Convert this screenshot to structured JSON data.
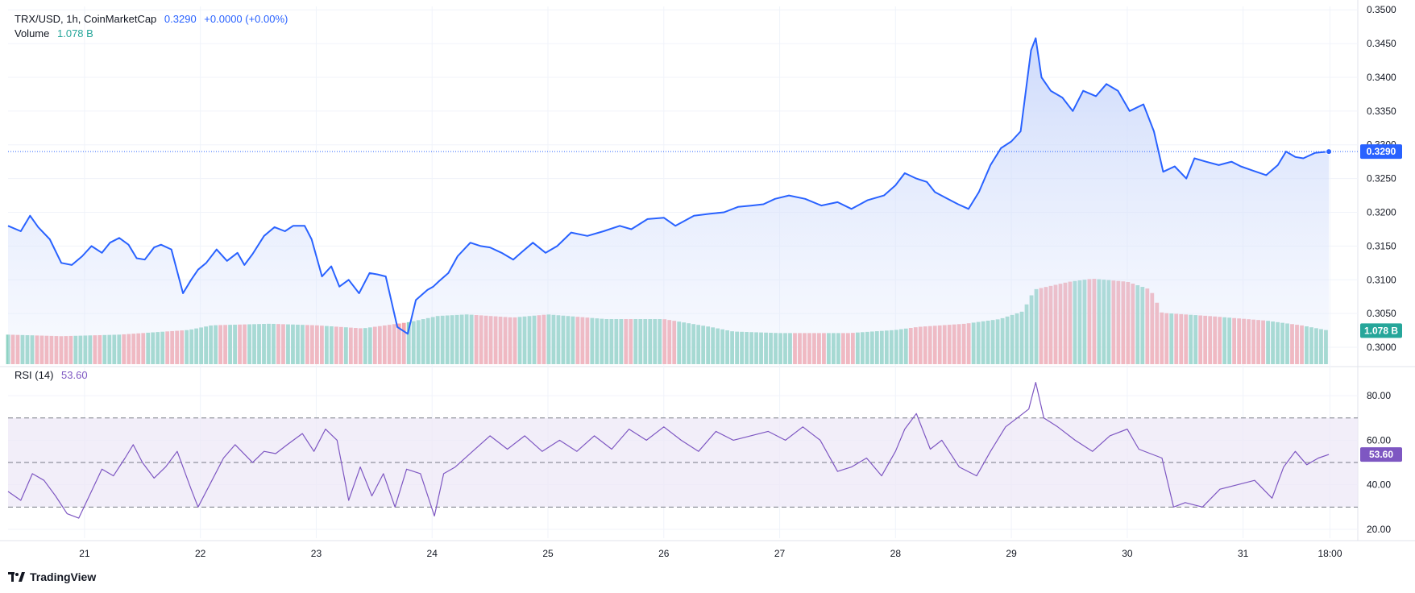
{
  "legend": {
    "symbol": "TRX/USD, 1h, CoinMarketCap",
    "price": "0.3290",
    "change": "+0.0000 (+0.00%)",
    "volume_label": "Volume",
    "volume_value": "1.078 B",
    "rsi_label": "RSI (14)",
    "rsi_value": "53.60"
  },
  "branding": {
    "name": "TradingView"
  },
  "colors": {
    "line": "#2962ff",
    "area_top": "#c5d4fb",
    "up_volume": "#8fd3c3",
    "down_volume": "#f4a7ad",
    "rsi_line": "#7e57c2",
    "rsi_band": "#ede7f6",
    "grid": "#f0f3fa",
    "volume_tag": "#26a69a",
    "rsi_tag": "#7e57c2",
    "price_tag": "#2962ff"
  },
  "chart_data": [
    {
      "type": "area",
      "pane": "price",
      "title": "TRX/USD, 1h, CoinMarketCap",
      "x_ticks": [
        "21",
        "22",
        "23",
        "24",
        "25",
        "26",
        "27",
        "28",
        "29",
        "30",
        "31",
        "18:00"
      ],
      "x_tick_days": [
        21,
        22,
        23,
        24,
        25,
        26,
        27,
        28,
        29,
        30,
        31,
        31.75
      ],
      "y_ticks": [
        "0.3000",
        "0.3050",
        "0.3100",
        "0.3150",
        "0.3200",
        "0.3250",
        "0.3300",
        "0.3350",
        "0.3400",
        "0.3450",
        "0.3500"
      ],
      "ylim": [
        0.2975,
        0.3505
      ],
      "xlim": [
        20.34,
        31.99
      ],
      "grid": true,
      "last_price": 0.329,
      "last_price_label": "0.3290",
      "series": [
        {
          "x": [
            20.34,
            20.45,
            20.53,
            20.6,
            20.7,
            20.8,
            20.89,
            20.98,
            21.06,
            21.15,
            21.22,
            21.3,
            21.38,
            21.45,
            21.52,
            21.6,
            21.66,
            21.75,
            21.85,
            21.92,
            21.98,
            22.05,
            22.14,
            22.23,
            22.32,
            22.38,
            22.45,
            22.55,
            22.64,
            22.73,
            22.8,
            22.9,
            22.96,
            23.05,
            23.13,
            23.2,
            23.28,
            23.37,
            23.46,
            23.53,
            23.6,
            23.7,
            23.79,
            23.86,
            23.96,
            24.01,
            24.06,
            24.14,
            24.22,
            24.33,
            24.42,
            24.5,
            24.6,
            24.7,
            24.78,
            24.87,
            24.98,
            25.08,
            25.2,
            25.34,
            25.48,
            25.62,
            25.72,
            25.86,
            26.0,
            26.1,
            26.26,
            26.4,
            26.52,
            26.64,
            26.76,
            26.86,
            26.96,
            27.08,
            27.22,
            27.36,
            27.5,
            27.62,
            27.76,
            27.9,
            28.0,
            28.08,
            28.18,
            28.27,
            28.34,
            28.45,
            28.54,
            28.63,
            28.72,
            28.82,
            28.91,
            29.0,
            29.08,
            29.17,
            29.21,
            29.26,
            29.34,
            29.44,
            29.53,
            29.62,
            29.73,
            29.82,
            29.92,
            30.02,
            30.14,
            30.23,
            30.31,
            30.41,
            30.51,
            30.58,
            30.68,
            30.79,
            30.9,
            30.98,
            31.08,
            31.2,
            31.3,
            31.37,
            31.45,
            31.52,
            31.62,
            31.74
          ],
          "y": [
            0.318,
            0.3172,
            0.3195,
            0.3178,
            0.316,
            0.3125,
            0.3122,
            0.3135,
            0.315,
            0.314,
            0.3155,
            0.3162,
            0.3152,
            0.3132,
            0.313,
            0.3148,
            0.3152,
            0.3145,
            0.308,
            0.31,
            0.3115,
            0.3125,
            0.3145,
            0.3128,
            0.314,
            0.3122,
            0.3138,
            0.3165,
            0.3178,
            0.3172,
            0.318,
            0.318,
            0.316,
            0.3105,
            0.312,
            0.309,
            0.31,
            0.308,
            0.311,
            0.3108,
            0.3105,
            0.303,
            0.302,
            0.307,
            0.3085,
            0.309,
            0.3098,
            0.311,
            0.3135,
            0.3155,
            0.315,
            0.3148,
            0.314,
            0.313,
            0.3142,
            0.3155,
            0.314,
            0.315,
            0.317,
            0.3165,
            0.3172,
            0.318,
            0.3175,
            0.319,
            0.3192,
            0.318,
            0.3195,
            0.3198,
            0.32,
            0.3208,
            0.321,
            0.3212,
            0.322,
            0.3225,
            0.322,
            0.321,
            0.3215,
            0.3205,
            0.3218,
            0.3225,
            0.324,
            0.3258,
            0.325,
            0.3245,
            0.323,
            0.322,
            0.3212,
            0.3205,
            0.323,
            0.327,
            0.3295,
            0.3305,
            0.332,
            0.344,
            0.3458,
            0.34,
            0.338,
            0.337,
            0.335,
            0.338,
            0.3372,
            0.339,
            0.338,
            0.335,
            0.336,
            0.332,
            0.326,
            0.3268,
            0.325,
            0.328,
            0.3275,
            0.327,
            0.3275,
            0.3268,
            0.3262,
            0.3255,
            0.327,
            0.329,
            0.3282,
            0.328,
            0.3288,
            0.329
          ]
        }
      ]
    },
    {
      "type": "bar",
      "pane": "volume",
      "title": "Volume",
      "unit": "B",
      "last_value": 1.078,
      "last_value_label": "1.078 B",
      "x": [
        20.34,
        20.8,
        21.3,
        21.9,
        22.1,
        22.6,
        23.0,
        23.4,
        23.8,
        24.05,
        24.3,
        24.7,
        25.0,
        25.5,
        26.0,
        26.4,
        26.6,
        27.0,
        27.6,
        28.0,
        28.2,
        28.6,
        28.9,
        29.1,
        29.2,
        29.5,
        29.7,
        30.0,
        30.2,
        30.3,
        30.7,
        31.2,
        31.5,
        31.74
      ],
      "y": [
        0.95,
        0.9,
        0.95,
        1.1,
        1.25,
        1.3,
        1.25,
        1.15,
        1.35,
        1.55,
        1.6,
        1.5,
        1.6,
        1.45,
        1.45,
        1.2,
        1.05,
        1.0,
        1.0,
        1.1,
        1.2,
        1.3,
        1.45,
        1.7,
        2.4,
        2.65,
        2.75,
        2.65,
        2.4,
        1.65,
        1.55,
        1.4,
        1.25,
        1.08
      ],
      "ylim": [
        0,
        11.5
      ],
      "direction_by_price": true
    },
    {
      "type": "line",
      "pane": "rsi",
      "title": "RSI (14)",
      "y_ticks": [
        "20.00",
        "40.00",
        "60.00",
        "80.00"
      ],
      "ylim": [
        16,
        92
      ],
      "bands": [
        30,
        50,
        70
      ],
      "last_value": 53.6,
      "last_value_label": "53.60",
      "series": [
        {
          "x": [
            20.34,
            20.45,
            20.55,
            20.65,
            20.75,
            20.85,
            20.95,
            21.05,
            21.15,
            21.25,
            21.35,
            21.42,
            21.5,
            21.6,
            21.7,
            21.8,
            21.92,
            21.98,
            22.08,
            22.2,
            22.3,
            22.45,
            22.55,
            22.65,
            22.75,
            22.88,
            22.98,
            23.08,
            23.18,
            23.28,
            23.38,
            23.48,
            23.58,
            23.68,
            23.78,
            23.9,
            24.02,
            24.1,
            24.2,
            24.35,
            24.5,
            24.65,
            24.8,
            24.95,
            25.1,
            25.25,
            25.4,
            25.55,
            25.7,
            25.85,
            26.0,
            26.15,
            26.3,
            26.45,
            26.6,
            26.75,
            26.9,
            27.05,
            27.2,
            27.35,
            27.5,
            27.62,
            27.75,
            27.88,
            28.0,
            28.08,
            28.18,
            28.3,
            28.4,
            28.55,
            28.7,
            28.82,
            28.95,
            29.05,
            29.15,
            29.21,
            29.28,
            29.4,
            29.55,
            29.7,
            29.85,
            30.0,
            30.1,
            30.2,
            30.3,
            30.4,
            30.5,
            30.65,
            30.8,
            30.95,
            31.1,
            31.25,
            31.35,
            31.45,
            31.55,
            31.65,
            31.74
          ],
          "y": [
            37,
            33,
            45,
            42,
            35,
            27,
            25,
            36,
            47,
            44,
            52,
            58,
            50,
            43,
            48,
            55,
            38,
            30,
            40,
            52,
            58,
            50,
            55,
            54,
            58,
            63,
            55,
            65,
            60,
            33,
            48,
            35,
            45,
            30,
            47,
            45,
            26,
            45,
            48,
            55,
            62,
            56,
            62,
            55,
            60,
            55,
            62,
            56,
            65,
            60,
            66,
            60,
            55,
            64,
            60,
            62,
            64,
            60,
            66,
            60,
            46,
            48,
            52,
            44,
            55,
            65,
            72,
            56,
            60,
            48,
            44,
            55,
            66,
            70,
            74,
            86,
            70,
            66,
            60,
            55,
            62,
            65,
            56,
            54,
            52,
            30,
            32,
            30,
            38,
            40,
            42,
            34,
            48,
            55,
            49,
            52,
            53.6
          ]
        }
      ]
    }
  ]
}
